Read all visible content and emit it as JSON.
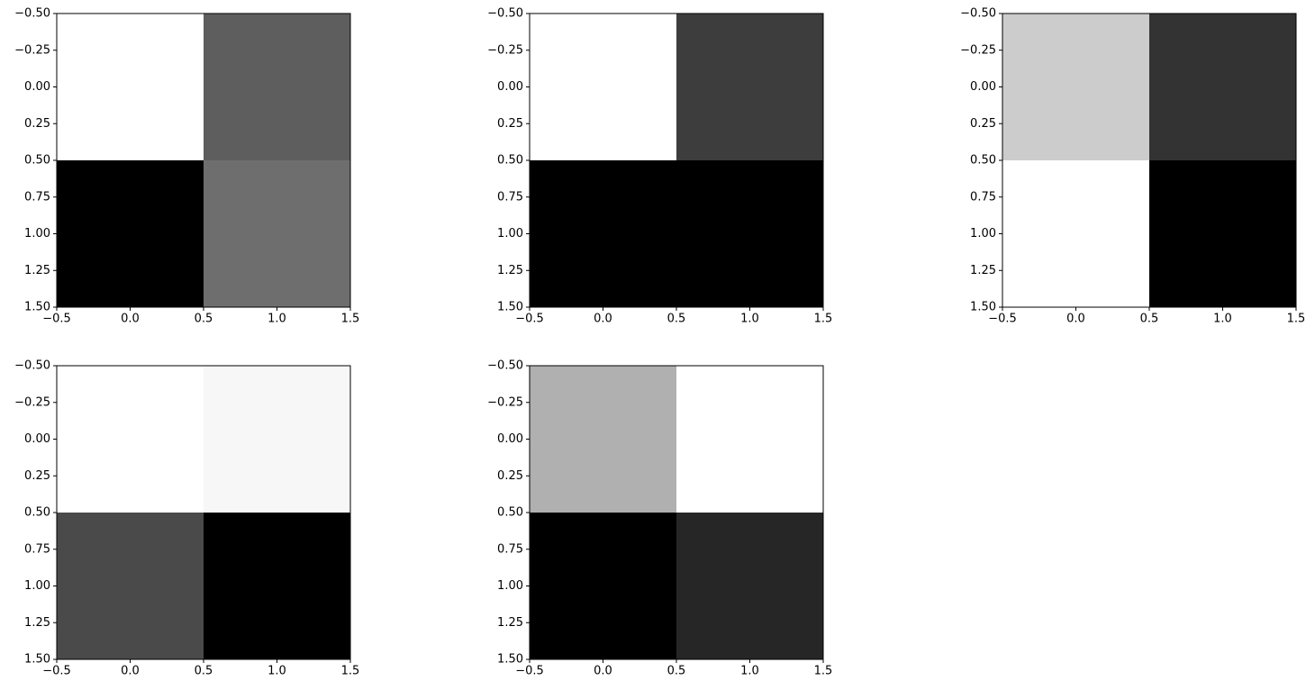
{
  "chart_data": [
    {
      "type": "heatmap",
      "cmap": "gray",
      "values": [
        [
          1,
          0.37
        ],
        [
          0,
          0.43
        ]
      ],
      "xlim": [
        -0.5,
        1.5
      ],
      "ylim": [
        1.5,
        -0.5
      ],
      "xticks": [
        {
          "value": -0.5,
          "label": "−0.5"
        },
        {
          "value": 0,
          "label": "0.0"
        },
        0.5,
        {
          "value": 1,
          "label": "1.0"
        },
        1.5
      ],
      "yticks": [
        {
          "value": -0.5,
          "label": "−0.50"
        },
        {
          "value": -0.25,
          "label": "−0.25"
        },
        {
          "value": 0,
          "label": "0.00"
        },
        0.25,
        {
          "value": 0.5,
          "label": "0.50"
        },
        0.75,
        {
          "value": 1,
          "label": "1.00"
        },
        1.25,
        {
          "value": 1.5,
          "label": "1.50"
        }
      ]
    },
    {
      "type": "heatmap",
      "cmap": "gray",
      "values": [
        [
          1,
          0.24
        ],
        [
          0,
          0
        ]
      ],
      "xlim": [
        -0.5,
        1.5
      ],
      "ylim": [
        1.5,
        -0.5
      ],
      "xticks": [
        {
          "value": -0.5,
          "label": "−0.5"
        },
        {
          "value": 0,
          "label": "0.0"
        },
        0.5,
        {
          "value": 1,
          "label": "1.0"
        },
        1.5
      ],
      "yticks": [
        {
          "value": -0.5,
          "label": "−0.50"
        },
        {
          "value": -0.25,
          "label": "−0.25"
        },
        {
          "value": 0,
          "label": "0.00"
        },
        0.25,
        {
          "value": 0.5,
          "label": "0.50"
        },
        0.75,
        {
          "value": 1,
          "label": "1.00"
        },
        1.25,
        {
          "value": 1.5,
          "label": "1.50"
        }
      ]
    },
    {
      "type": "heatmap",
      "cmap": "gray",
      "values": [
        [
          0.8,
          0.2
        ],
        [
          1,
          0
        ]
      ],
      "xlim": [
        -0.5,
        1.5
      ],
      "ylim": [
        1.5,
        -0.5
      ],
      "xticks": [
        {
          "value": -0.5,
          "label": "−0.5"
        },
        {
          "value": 0,
          "label": "0.0"
        },
        0.5,
        {
          "value": 1,
          "label": "1.0"
        },
        1.5
      ],
      "yticks": [
        {
          "value": -0.5,
          "label": "−0.50"
        },
        {
          "value": -0.25,
          "label": "−0.25"
        },
        {
          "value": 0,
          "label": "0.00"
        },
        0.25,
        {
          "value": 0.5,
          "label": "0.50"
        },
        0.75,
        {
          "value": 1,
          "label": "1.00"
        },
        1.25,
        {
          "value": 1.5,
          "label": "1.50"
        }
      ]
    },
    {
      "type": "heatmap",
      "cmap": "gray",
      "values": [
        [
          1,
          0.97
        ],
        [
          0.29,
          0
        ]
      ],
      "xlim": [
        -0.5,
        1.5
      ],
      "ylim": [
        1.5,
        -0.5
      ],
      "xticks": [
        {
          "value": -0.5,
          "label": "−0.5"
        },
        {
          "value": 0,
          "label": "0.0"
        },
        0.5,
        {
          "value": 1,
          "label": "1.0"
        },
        1.5
      ],
      "yticks": [
        {
          "value": -0.5,
          "label": "−0.50"
        },
        {
          "value": -0.25,
          "label": "−0.25"
        },
        {
          "value": 0,
          "label": "0.00"
        },
        0.25,
        {
          "value": 0.5,
          "label": "0.50"
        },
        0.75,
        {
          "value": 1,
          "label": "1.00"
        },
        1.25,
        {
          "value": 1.5,
          "label": "1.50"
        }
      ]
    },
    {
      "type": "heatmap",
      "cmap": "gray",
      "values": [
        [
          0.69,
          1
        ],
        [
          0,
          0.15
        ]
      ],
      "xlim": [
        -0.5,
        1.5
      ],
      "ylim": [
        1.5,
        -0.5
      ],
      "xticks": [
        {
          "value": -0.5,
          "label": "−0.5"
        },
        {
          "value": 0,
          "label": "0.0"
        },
        0.5,
        {
          "value": 1,
          "label": "1.0"
        },
        1.5
      ],
      "yticks": [
        {
          "value": -0.5,
          "label": "−0.50"
        },
        {
          "value": -0.25,
          "label": "−0.25"
        },
        {
          "value": 0,
          "label": "0.00"
        },
        0.25,
        {
          "value": 0.5,
          "label": "0.50"
        },
        0.75,
        {
          "value": 1,
          "label": "1.00"
        },
        1.25,
        {
          "value": 1.5,
          "label": "1.50"
        }
      ]
    }
  ]
}
